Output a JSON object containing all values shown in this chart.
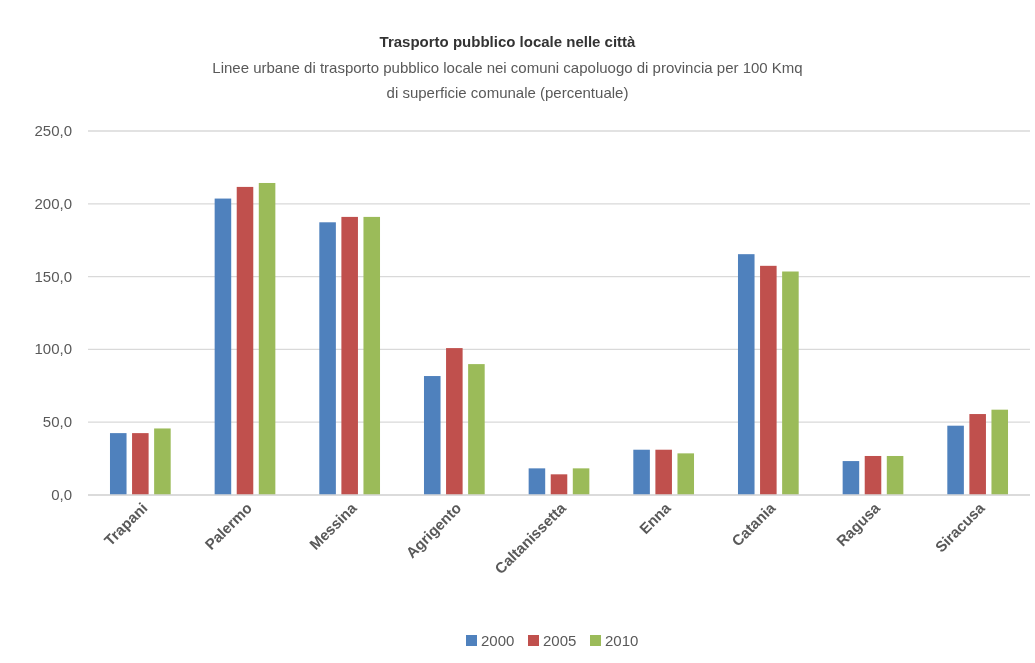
{
  "chart_data": {
    "type": "bar",
    "title": "Trasporto pubblico locale nelle città",
    "subtitle": "Linee urbane di trasporto pubblico locale nei comuni capoluogo di provincia per 100 Kmq\ndi superficie comunale (percentuale)",
    "categories": [
      "Trapani",
      "Palermo",
      "Messina",
      "Agrigento",
      "Caltanissetta",
      "Enna",
      "Catania",
      "Ragusa",
      "Siracusa"
    ],
    "series": [
      {
        "name": "2000",
        "color": "#4f81bd",
        "values": [
          42.5,
          203.6,
          187.3,
          81.7,
          18.3,
          31.1,
          165.4,
          23.3,
          47.6
        ]
      },
      {
        "name": "2005",
        "color": "#c0504d",
        "values": [
          42.5,
          211.6,
          191.0,
          100.9,
          14.2,
          31.1,
          157.4,
          26.8,
          55.6
        ]
      },
      {
        "name": "2010",
        "color": "#9bbb59",
        "values": [
          45.7,
          214.3,
          191.0,
          89.9,
          18.3,
          28.6,
          153.5,
          26.8,
          58.6
        ]
      }
    ],
    "ylim": [
      0,
      250
    ],
    "yticks": [
      {
        "value": 0,
        "label": "0,0"
      },
      {
        "value": 50,
        "label": "50,0"
      },
      {
        "value": 100,
        "label": "100,0"
      },
      {
        "value": 150,
        "label": "150,0"
      },
      {
        "value": 200,
        "label": "200,0"
      },
      {
        "value": 250,
        "label": "250,0"
      }
    ],
    "grid": "y",
    "legend": "bottom"
  }
}
